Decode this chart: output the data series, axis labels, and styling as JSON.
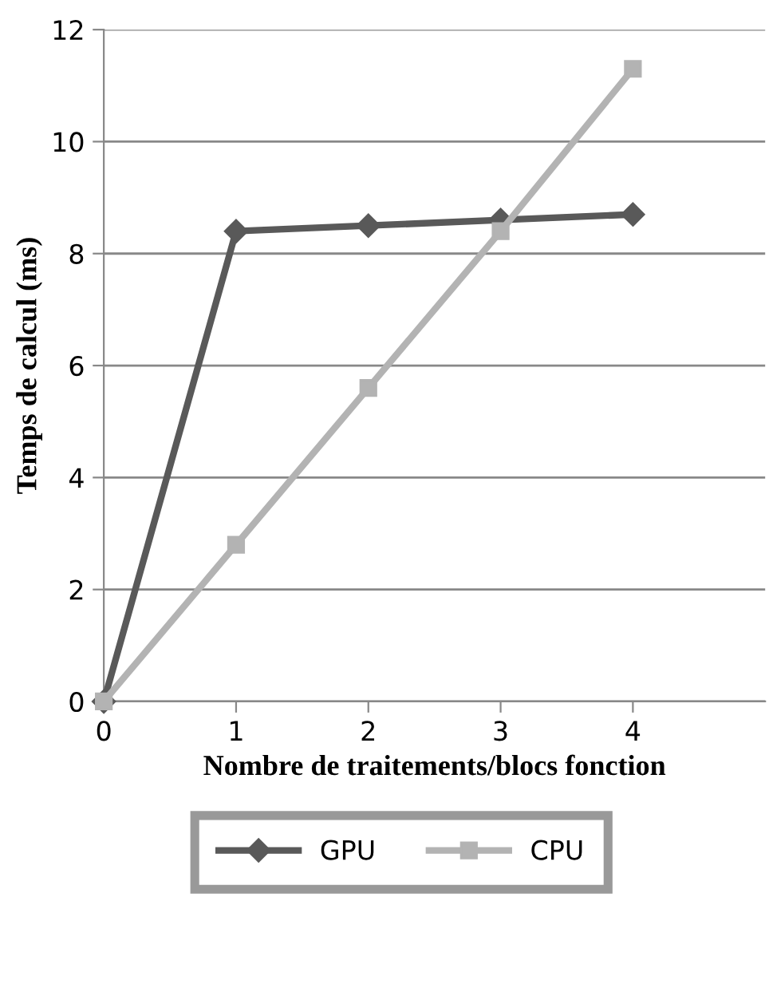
{
  "chart_data": {
    "type": "line",
    "xlabel": "Nombre de traitements/blocs fonction",
    "ylabel": "Temps de calcul (ms)",
    "x": [
      0,
      1,
      2,
      3,
      4
    ],
    "xlim": [
      0,
      5
    ],
    "xticks": [
      0,
      1,
      2,
      3,
      4
    ],
    "ylim": [
      0,
      12
    ],
    "yticks": [
      0,
      2,
      4,
      6,
      8,
      10,
      12
    ],
    "grid": "y",
    "legend": "bottom",
    "line_style": "solid",
    "series": [
      {
        "name": "GPU",
        "color": "#595959",
        "marker": "diamond",
        "values": [
          0,
          8.4,
          8.5,
          8.6,
          8.7
        ]
      },
      {
        "name": "CPU",
        "color": "#b3b3b3",
        "marker": "square",
        "values": [
          0,
          2.8,
          5.6,
          8.4,
          11.3
        ]
      }
    ]
  }
}
